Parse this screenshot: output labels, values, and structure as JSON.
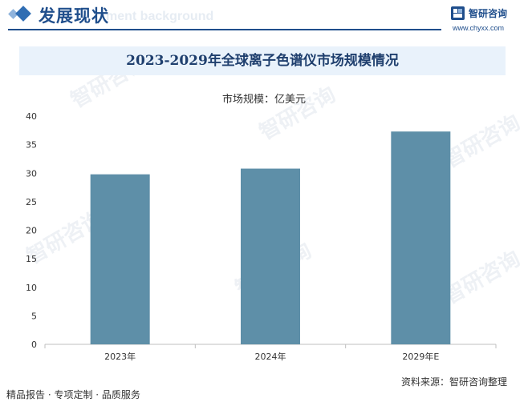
{
  "header": {
    "section_title": "发展现状",
    "section_bg_text": "ment background",
    "brand_name": "智研咨询",
    "brand_url": "www.chyxx.com",
    "watermark_text": "智研咨询"
  },
  "chart_data": {
    "type": "bar",
    "title": "2023-2029年全球离子色谱仪市场规模情况",
    "unit_label": "市场规模：亿美元",
    "categories": [
      "2023年",
      "2024年",
      "2029年E"
    ],
    "values": [
      29.8,
      30.8,
      37.3
    ],
    "ylim": [
      0,
      40
    ],
    "yticks": [
      0,
      5,
      10,
      15,
      20,
      25,
      30,
      35,
      40
    ],
    "bar_color": "#5e8fa8",
    "grid": false,
    "legend": "none"
  },
  "footer": {
    "left": "精品报告 · 专项定制 · 品质服务",
    "right": "资料来源：智研咨询整理"
  }
}
